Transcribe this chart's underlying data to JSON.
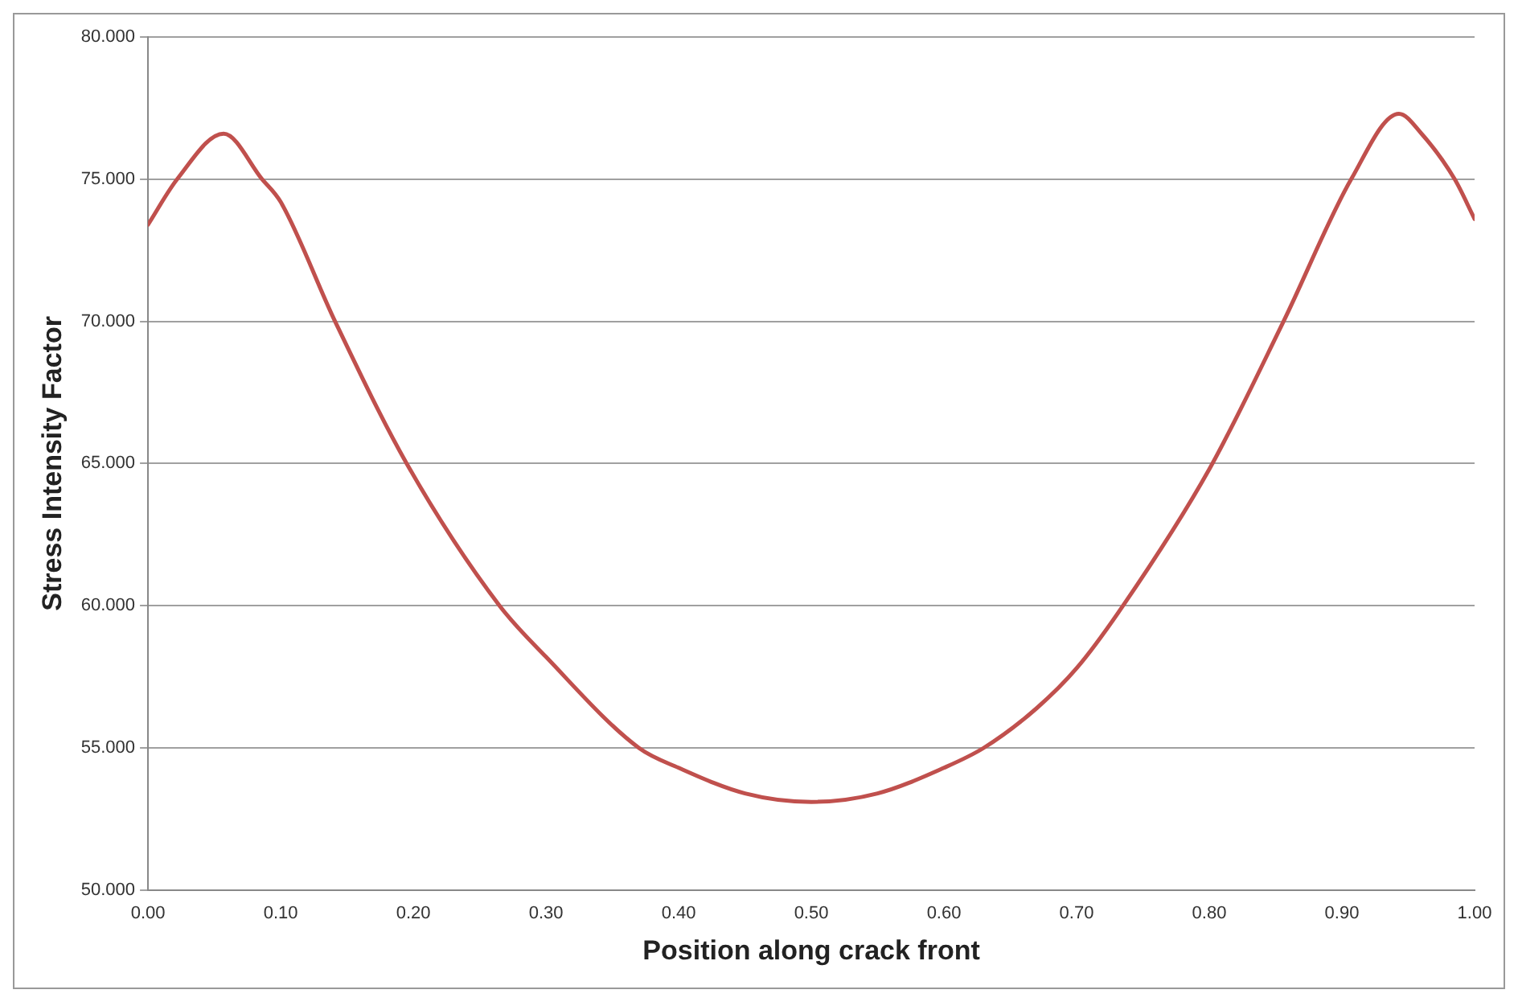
{
  "chart_data": {
    "type": "line",
    "xlabel": "Position along crack front",
    "ylabel": "Stress Intensity Factor",
    "x": [
      0,
      0.022,
      0.057,
      0.086,
      0.1,
      0.141,
      0.195,
      0.265,
      0.3,
      0.37,
      0.4,
      0.45,
      0.5,
      0.55,
      0.6,
      0.63,
      0.67,
      0.7,
      0.735,
      0.8,
      0.856,
      0.907,
      0.943,
      0.96,
      0.985,
      1.0
    ],
    "series": [
      {
        "color": "#c0504d",
        "values": [
          73.4,
          75.0,
          76.6,
          75.0,
          74.2,
          70.0,
          65.0,
          60.0,
          58.2,
          55.0,
          54.3,
          53.4,
          53.1,
          53.4,
          54.3,
          55.0,
          56.4,
          57.8,
          60.0,
          64.8,
          70.0,
          75.0,
          77.3,
          76.6,
          75.0,
          73.6
        ]
      }
    ],
    "xlim": [
      0,
      1
    ],
    "xticks": [
      {
        "value": 0,
        "label": "0.00"
      },
      {
        "value": 0.1,
        "label": "0.10"
      },
      {
        "value": 0.2,
        "label": "0.20"
      },
      {
        "value": 0.3,
        "label": "0.30"
      },
      {
        "value": 0.4,
        "label": "0.40"
      },
      {
        "value": 0.5,
        "label": "0.50"
      },
      {
        "value": 0.6,
        "label": "0.60"
      },
      {
        "value": 0.7,
        "label": "0.70"
      },
      {
        "value": 0.8,
        "label": "0.80"
      },
      {
        "value": 0.9,
        "label": "0.90"
      },
      {
        "value": 1,
        "label": "1.00"
      }
    ],
    "ylim": [
      50,
      80
    ],
    "yticks": [
      {
        "value": 50,
        "label": "50.000"
      },
      {
        "value": 55,
        "label": "55.000"
      },
      {
        "value": 60,
        "label": "60.000"
      },
      {
        "value": 65,
        "label": "65.000"
      },
      {
        "value": 70,
        "label": "70.000"
      },
      {
        "value": 75,
        "label": "75.000"
      },
      {
        "value": 80,
        "label": "80.000"
      }
    ],
    "grid": "y",
    "legend": false,
    "marker": "none",
    "line_style": "solid"
  }
}
